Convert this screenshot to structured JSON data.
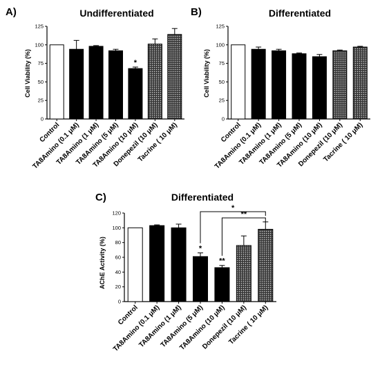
{
  "chart_data": [
    {
      "panel": "A)",
      "type": "bar",
      "title": "Undifferentiated",
      "ylabel": "Cell Viability (%)",
      "ylim": [
        0,
        125
      ],
      "yticks": [
        0,
        25,
        50,
        75,
        100,
        125
      ],
      "categories": [
        "Control",
        "TA8Amino (0.1 μM)",
        "TA8Amino (1 μM)",
        "TA8Amino (5 μM)",
        "TA8Amino (10 μM)",
        "Donepezil (10 μM)",
        "Tacrine ( 10 μM)"
      ],
      "values": [
        100,
        94,
        98,
        92,
        68,
        101,
        114
      ],
      "errors": [
        0,
        12,
        1,
        2,
        2,
        7,
        8
      ],
      "fills": [
        "white",
        "black",
        "black",
        "black",
        "black",
        "dotted",
        "dotted"
      ],
      "annotations": [
        "",
        "",
        "",
        "",
        "*",
        "",
        ""
      ],
      "grid": false
    },
    {
      "panel": "B)",
      "type": "bar",
      "title": "Differentiated",
      "ylabel": "Cell Viability (%)",
      "ylim": [
        0,
        125
      ],
      "yticks": [
        0,
        25,
        50,
        75,
        100,
        125
      ],
      "categories": [
        "Control",
        "TA8Amino (0.1 μM)",
        "TA8Amino (1 μM)",
        "TA8Amino (5 μM)",
        "TA8Amino (10 μM)",
        "Donepezil (10 μM)",
        "Tacrine ( 10 μM)"
      ],
      "values": [
        100,
        94,
        92,
        88,
        84,
        92,
        97
      ],
      "errors": [
        0,
        3,
        2,
        1,
        3,
        1,
        1
      ],
      "fills": [
        "white",
        "black",
        "black",
        "black",
        "black",
        "dotted",
        "dotted"
      ],
      "annotations": [
        "",
        "",
        "",
        "",
        "",
        "",
        ""
      ],
      "grid": false
    },
    {
      "panel": "C)",
      "type": "bar",
      "title": "Differentiated",
      "ylabel": "AChE Activity (%)",
      "ylim": [
        0,
        120
      ],
      "yticks": [
        0,
        20,
        40,
        60,
        80,
        100,
        120
      ],
      "categories": [
        "Control",
        "TA8Amino (0.1 μM)",
        "TA8Amino (1 μM)",
        "TA8Amino (5 μM)",
        "TA8Amino (10 μM)",
        "Donepezil (10 μM)",
        "Tacrine ( 10 μM)"
      ],
      "values": [
        100,
        103,
        100,
        61,
        46,
        76,
        98
      ],
      "errors": [
        0,
        1,
        5,
        5,
        3,
        13,
        10
      ],
      "fills": [
        "white",
        "black",
        "black",
        "black",
        "black",
        "dotted",
        "dotted"
      ],
      "annotations": [
        "",
        "",
        "",
        "*",
        "**",
        "",
        ""
      ],
      "brackets": [
        {
          "from": 3,
          "to": 6,
          "label": "*"
        },
        {
          "from": 4,
          "to": 6,
          "label": "**"
        }
      ],
      "grid": false
    }
  ]
}
